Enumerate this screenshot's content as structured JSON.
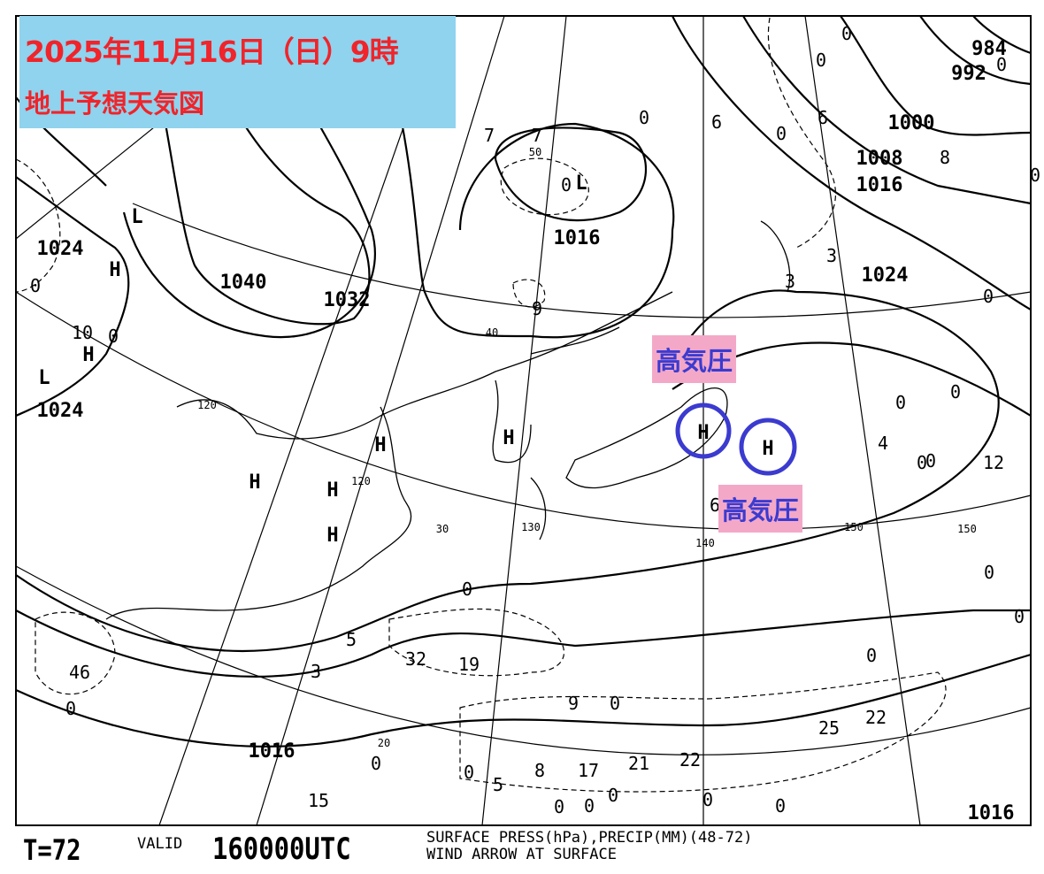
{
  "header": {
    "title": "2025年11月16日（日）9時",
    "subtitle": "地上予想天気図",
    "title_color": "#f0242a",
    "title_bg": "#8fd3ee"
  },
  "annotations": {
    "high_label_1": "高気圧",
    "high_label_2": "高気圧",
    "label_bg": "#f4a8c8",
    "label_color": "#3b3bd0",
    "circle_color": "#3b3bd0"
  },
  "footer": {
    "forecast_time": "T=72",
    "valid_label": "VALID",
    "valid_time": "160000UTC",
    "description_line1": "SURFACE PRESS(hPa),PRECIP(MM)(48-72)",
    "description_line2": "WIND ARROW AT SURFACE"
  },
  "isobar_labels": [
    "1040",
    "1032",
    "1024",
    "1024",
    "1016",
    "1016",
    "1024",
    "1000",
    "984",
    "992",
    "1008",
    "1016",
    "1016"
  ],
  "pressure_centers": [
    "H",
    "H",
    "H",
    "H",
    "H",
    "H",
    "H",
    "H",
    "H",
    "L",
    "L",
    "L"
  ],
  "precip_values": [
    "7",
    "7",
    "0",
    "6",
    "6",
    "0",
    "0",
    "0",
    "8",
    "0",
    "0",
    "9",
    "10",
    "0",
    "3",
    "3",
    "0",
    "0",
    "0",
    "4",
    "0",
    "12",
    "0",
    "0",
    "5",
    "3",
    "32",
    "19",
    "46",
    "0",
    "0",
    "9",
    "0",
    "25",
    "22",
    "0",
    "8",
    "17",
    "21",
    "22",
    "15",
    "0",
    "0",
    "5",
    "0",
    "0",
    "0",
    "0",
    "0",
    "0",
    "0",
    "0",
    "6"
  ],
  "latitude_labels": [
    "40",
    "30",
    "20",
    "50"
  ],
  "longitude_labels": [
    "120",
    "130",
    "140",
    "150",
    "150",
    "120"
  ]
}
